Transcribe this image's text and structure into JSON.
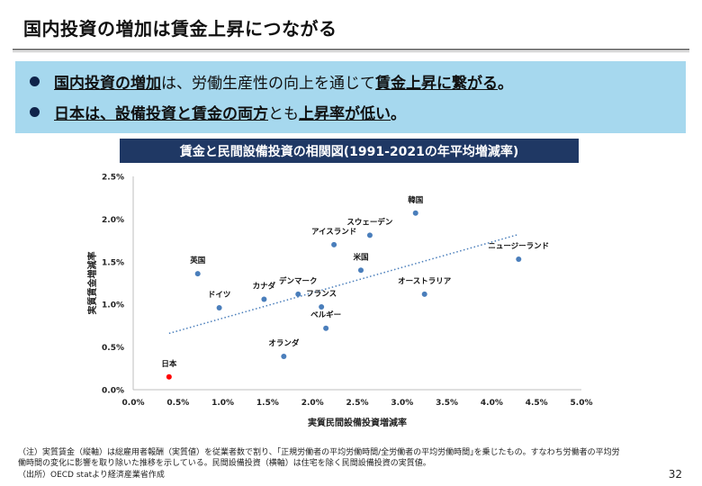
{
  "slide": {
    "title": "国内投資の増加は賃金上昇につながる",
    "page_number": "32"
  },
  "summary": {
    "bullet1": {
      "part1": "国内投資の増加",
      "part2": "は、労働生産性の向上を通じて",
      "part3": "賃金上昇に繋がる",
      "part4": "。"
    },
    "bullet2": {
      "part1": "日本は、設備投資と賃金の両方",
      "part2": "とも",
      "part3": "上昇率が低い",
      "part4": "。"
    }
  },
  "chart_data": {
    "type": "scatter",
    "title": "賃金と民間設備投資の相関図(1991-2021の年平均増減率)",
    "xlabel": "実質民間設備投資増減率",
    "ylabel": "実質賃金増減率",
    "xlim": [
      0.0,
      5.0
    ],
    "ylim": [
      0.0,
      2.5
    ],
    "x_ticks": [
      "0.0%",
      "0.5%",
      "1.0%",
      "1.5%",
      "2.0%",
      "2.5%",
      "3.0%",
      "3.5%",
      "4.0%",
      "4.5%",
      "5.0%"
    ],
    "y_ticks": [
      "0.0%",
      "0.5%",
      "1.0%",
      "1.5%",
      "2.0%",
      "2.5%"
    ],
    "grid": false,
    "trendline": {
      "style": "dotted",
      "from": [
        0.4,
        0.66
      ],
      "to": [
        4.3,
        1.82
      ]
    },
    "colors": {
      "points": "#4a7ebb",
      "highlight": "#ff0000",
      "trendline": "#4a7ebb"
    },
    "points": [
      {
        "label": "日本",
        "x": 0.4,
        "y": 0.15,
        "highlight": true
      },
      {
        "label": "英国",
        "x": 0.72,
        "y": 1.36
      },
      {
        "label": "ドイツ",
        "x": 0.96,
        "y": 0.96
      },
      {
        "label": "カナダ",
        "x": 1.46,
        "y": 1.06
      },
      {
        "label": "デンマーク",
        "x": 1.84,
        "y": 1.12
      },
      {
        "label": "フランス",
        "x": 2.1,
        "y": 0.97
      },
      {
        "label": "ベルギー",
        "x": 2.15,
        "y": 0.72
      },
      {
        "label": "オランダ",
        "x": 1.68,
        "y": 0.39
      },
      {
        "label": "アイスランド",
        "x": 2.24,
        "y": 1.7
      },
      {
        "label": "米国",
        "x": 2.54,
        "y": 1.4
      },
      {
        "label": "スウェーデン",
        "x": 2.64,
        "y": 1.81
      },
      {
        "label": "韓国",
        "x": 3.15,
        "y": 2.07
      },
      {
        "label": "オーストラリア",
        "x": 3.25,
        "y": 1.12
      },
      {
        "label": "ニュージーランド",
        "x": 4.3,
        "y": 1.53
      }
    ]
  },
  "notes": {
    "line1": "（注）実質賃金（縦軸）は総雇用者報酬（実質値）を従業者数で割り、｢正規労働者の平均労働時間/全労働者の平均労働時間｣を乗じたもの。すなわち労働者の平均労",
    "line2": "働時間の変化に影響を取り除いた推移を示している。民間設備投資（横軸）は住宅を除く民間設備投資の実質値。",
    "line3": "（出所）OECD statより経済産業省作成"
  }
}
